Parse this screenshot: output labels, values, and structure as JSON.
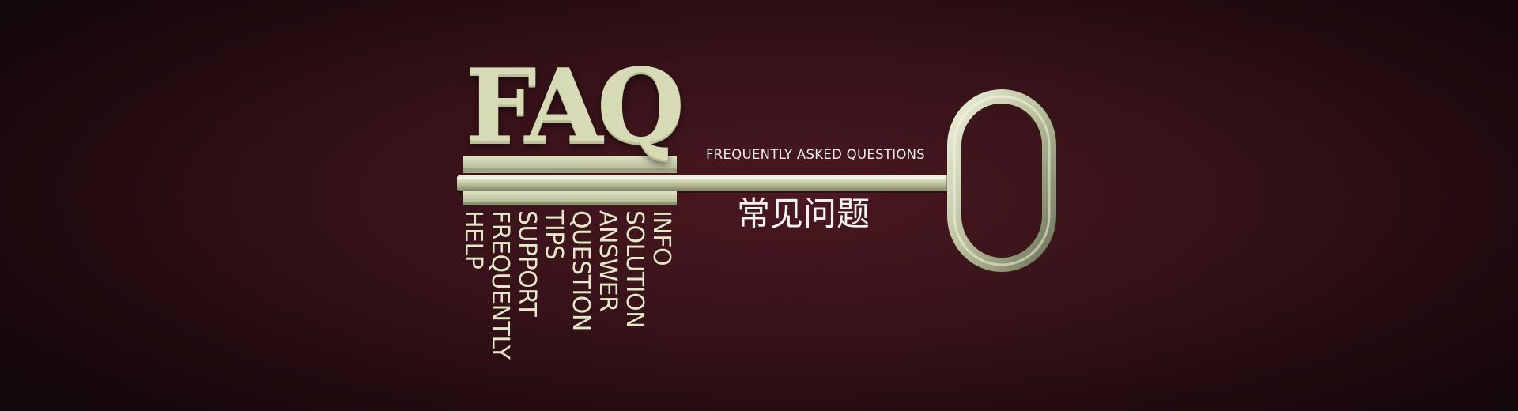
{
  "banner": {
    "title": "FAQ",
    "subtitle": "FREQUENTLY ASKED QUESTIONS",
    "title_zh": "常见问题",
    "key_words": [
      "INFO",
      "SOLUTION",
      "ANSWER",
      "QUESTION",
      "TIPS",
      "SUPPORT",
      "FREQUENTLY",
      "HELP"
    ]
  },
  "colors": {
    "background": "#2a0e14",
    "metal": "#d6dbb6",
    "text": "#eeeeee"
  },
  "icons": {
    "key_illustration": "key-icon"
  }
}
